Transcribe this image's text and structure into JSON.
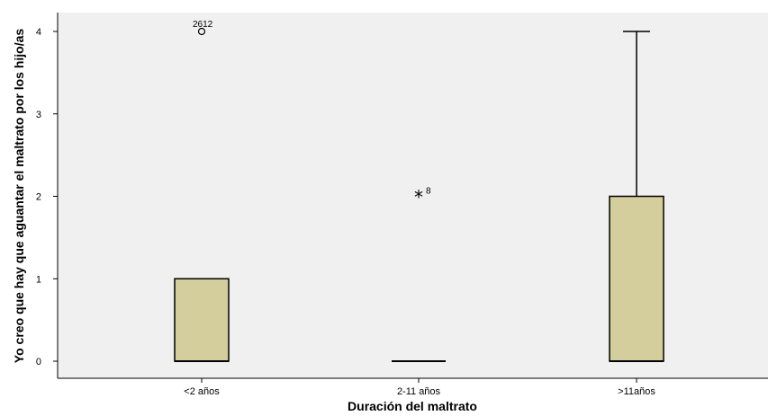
{
  "chart_data": {
    "type": "boxplot",
    "xlabel": "Duración del maltrato",
    "ylabel": "Yo creo que hay que aguantar el maltrato por los hijo/as",
    "categories": [
      "<2 años",
      "2-11 años",
      ">11años"
    ],
    "ylim": [
      -0.2,
      4.2
    ],
    "yticks": [
      0,
      1,
      2,
      3,
      4
    ],
    "grid": false,
    "boxes": [
      {
        "category": "<2 años",
        "min": 0,
        "q1": 0,
        "median": 0,
        "q3": 1,
        "max": 1,
        "outliers": [
          {
            "value": 4,
            "marker": "circle",
            "label": "2612"
          }
        ]
      },
      {
        "category": "2-11 años",
        "min": 0,
        "q1": 0,
        "median": 0,
        "q3": 0,
        "max": 0,
        "outliers": [
          {
            "value": 2,
            "marker": "star",
            "label": "8"
          }
        ]
      },
      {
        "category": ">11años",
        "min": 0,
        "q1": 0,
        "median": 0,
        "q3": 2,
        "max": 4,
        "outliers": []
      }
    ],
    "colors": {
      "plot_bg": "#f0f0f0",
      "box_fill": "#d3ce9b",
      "stroke": "#000000"
    }
  }
}
